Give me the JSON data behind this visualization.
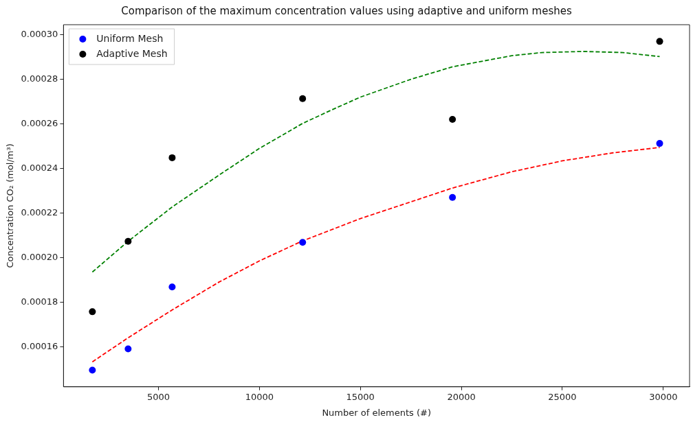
{
  "chart_data": {
    "type": "scatter",
    "title": "Comparison of the maximum concentration values using adaptive and uniform meshes",
    "xlabel": "Number of elements (#)",
    "ylabel": "Concentration CO₂ (mol/m³)",
    "xlim": [
      300,
      31300
    ],
    "xticks": [
      5000,
      10000,
      15000,
      20000,
      25000,
      30000
    ],
    "ylim": [
      0.000142,
      0.0003045
    ],
    "yticks": [
      {
        "value": 0.00016,
        "label": "0.00016"
      },
      {
        "value": 0.00018,
        "label": "0.00018"
      },
      {
        "value": 0.0002,
        "label": "0.00020"
      },
      {
        "value": 0.00022,
        "label": "0.00022"
      },
      {
        "value": 0.00024,
        "label": "0.00024"
      },
      {
        "value": 0.00026,
        "label": "0.00026"
      },
      {
        "value": 0.00028,
        "label": "0.00028"
      },
      {
        "value": 0.0003,
        "label": "0.00030"
      }
    ],
    "grid": false,
    "legend": "top left",
    "marker": "circle",
    "series": [
      {
        "name": "Uniform Mesh",
        "color": "#0000ff",
        "x": [
          1730,
          3500,
          5680,
          12140,
          19560,
          29820
        ],
        "values": [
          0.0001495,
          0.000159,
          0.0001868,
          0.0002068,
          0.000227,
          0.0002512
        ]
      },
      {
        "name": "Adaptive Mesh",
        "color": "#000000",
        "x": [
          1730,
          3500,
          5680,
          12140,
          19560,
          29820
        ],
        "values": [
          0.0001757,
          0.0002073,
          0.0002448,
          0.0002713,
          0.000262,
          0.000297
        ]
      },
      {
        "type": "line",
        "line_style": "dashed",
        "marker": "none",
        "color": "#008000",
        "x": [
          1730,
          3500,
          5680,
          8000,
          10000,
          12140,
          13590,
          15000,
          17500,
          19560,
          22500,
          24000,
          26030,
          28000,
          29820
        ],
        "values": [
          0.0001935,
          0.0002073,
          0.0002227,
          0.000237,
          0.000249,
          0.0002602,
          0.0002663,
          0.000272,
          0.00028,
          0.0002856,
          0.0002906,
          0.000292,
          0.0002925,
          0.000292,
          0.0002902
        ]
      },
      {
        "type": "line",
        "line_style": "dashed",
        "marker": "none",
        "color": "#ff0000",
        "x": [
          1730,
          3500,
          5680,
          8000,
          10000,
          12140,
          15000,
          17500,
          19560,
          22500,
          25000,
          27500,
          29820
        ],
        "values": [
          0.0001532,
          0.000164,
          0.0001765,
          0.000189,
          0.0001985,
          0.0002075,
          0.0002175,
          0.000225,
          0.0002312,
          0.0002385,
          0.0002434,
          0.000247,
          0.0002494
        ]
      }
    ]
  }
}
